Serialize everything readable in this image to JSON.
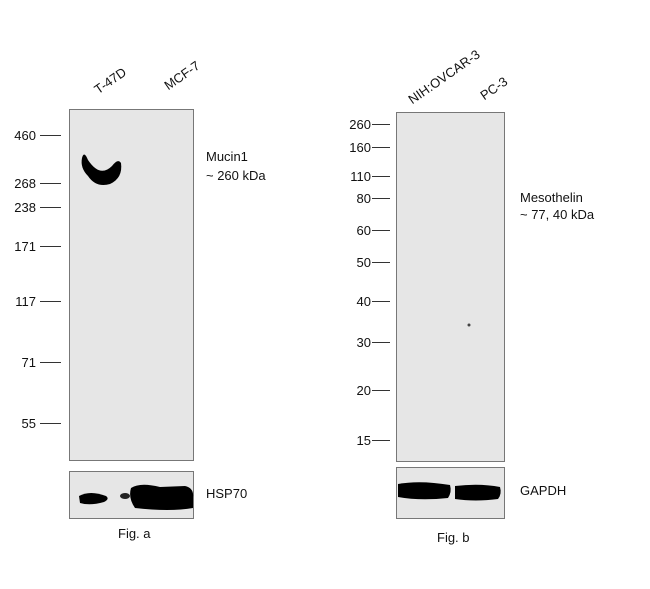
{
  "fig_a": {
    "lanes": [
      "T-47D",
      "MCF-7"
    ],
    "markers": [
      "460",
      "268",
      "238",
      "171",
      "117",
      "71",
      "55"
    ],
    "target": "Mucin1",
    "target_size": "~ 260 kDa",
    "loading_control": "HSP70",
    "caption": "Fig. a"
  },
  "fig_b": {
    "lanes": [
      "NIH:OVCAR-3",
      "PC-3"
    ],
    "markers": [
      "260",
      "160",
      "110",
      "80",
      "60",
      "50",
      "40",
      "30",
      "20",
      "15"
    ],
    "target": "Mesothelin",
    "target_size": "~ 77, 40 kDa",
    "loading_control": "GAPDH",
    "caption": "Fig. b"
  },
  "colors": {
    "membrane": "#e6e6e6",
    "band": "#000000"
  }
}
